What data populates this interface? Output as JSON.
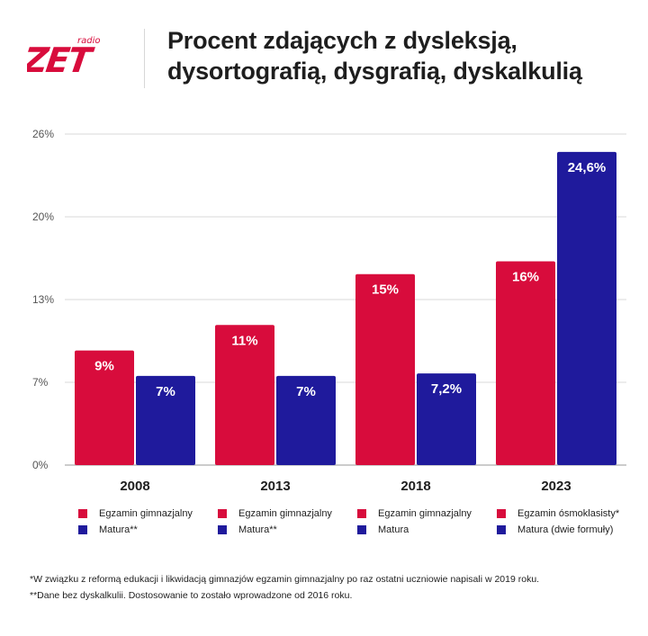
{
  "brand": {
    "radio_label": "radio",
    "logo_text": "ZET",
    "brand_red": "#d80c3c",
    "brand_blue": "#1f1a9c"
  },
  "title": {
    "line1": "Procent zdających z dysleksją,",
    "line2": "dysortografią, dysgrafią, dyskalkulią"
  },
  "chart_data": {
    "type": "bar",
    "categories": [
      "2008",
      "2013",
      "2018",
      "2023"
    ],
    "series": [
      {
        "name": "Egzamin gimnazjalny / Egzamin ósmoklasisty",
        "color": "#d80c3c",
        "values": [
          9,
          11,
          15,
          16
        ],
        "labels": [
          "9%",
          "11%",
          "15%",
          "16%"
        ]
      },
      {
        "name": "Matura",
        "color": "#1f1a9c",
        "values": [
          7,
          7,
          7.2,
          24.6
        ],
        "labels": [
          "7%",
          "7%",
          "7,2%",
          "24,6%"
        ]
      }
    ],
    "y_ticks": [
      0,
      6.5,
      13,
      19.5,
      26
    ],
    "y_tick_labels": [
      "0%",
      "7%",
      "13%",
      "20%",
      "26%"
    ],
    "ylim": [
      0,
      26
    ],
    "grid": true,
    "xlabel": "",
    "ylabel": ""
  },
  "legend": [
    [
      {
        "label": "Egzamin gimnazjalny",
        "color": "#d80c3c"
      },
      {
        "label": "Matura**",
        "color": "#1f1a9c"
      }
    ],
    [
      {
        "label": "Egzamin gimnazjalny",
        "color": "#d80c3c"
      },
      {
        "label": "Matura**",
        "color": "#1f1a9c"
      }
    ],
    [
      {
        "label": "Egzamin gimnazjalny",
        "color": "#d80c3c"
      },
      {
        "label": "Matura",
        "color": "#1f1a9c"
      }
    ],
    [
      {
        "label": "Egzamin ósmoklasisty*",
        "color": "#d80c3c"
      },
      {
        "label": "Matura (dwie formuły)",
        "color": "#1f1a9c"
      }
    ]
  ],
  "footnotes": [
    "*W związku z reformą edukacji i likwidacją gimnazjów egzamin gimnazjalny po raz ostatni uczniowie napisali w 2019 roku.",
    "**Dane bez dyskalkulii. Dostosowanie to zostało wprowadzone od 2016 roku."
  ]
}
